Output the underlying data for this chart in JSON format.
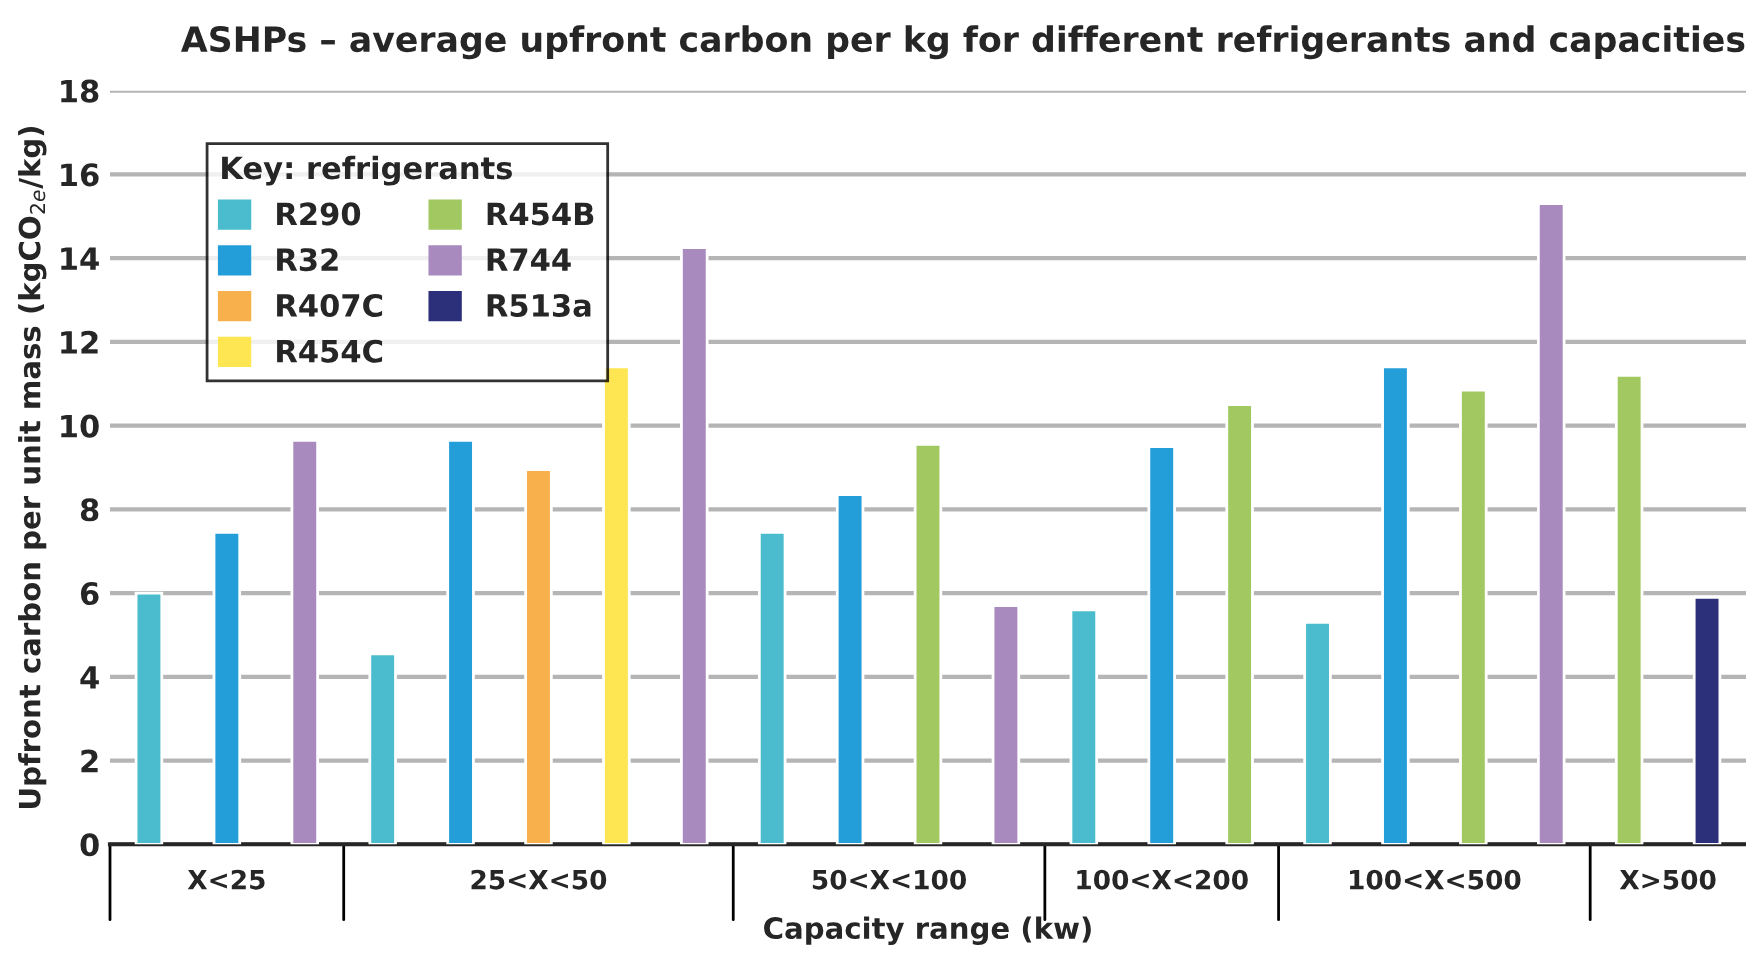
{
  "chart_data": {
    "type": "bar",
    "title": "ASHPs – average upfront carbon per kg for different refrigerants and capacities",
    "xlabel": "Capacity range (kw)",
    "ylabel": "Upfront carbon per unit mass (kgCO$_{2e}$/kg)",
    "legend_title": "Key: refrigerants",
    "categories": [
      "X<25",
      "25<X<50",
      "50<X<100",
      "100<X<200",
      "100<X<500",
      "X>500"
    ],
    "series": [
      {
        "name": "R290",
        "color": "#4bbccd",
        "values": [
          6.0,
          4.55,
          7.45,
          5.6,
          5.3,
          null
        ]
      },
      {
        "name": "R32",
        "color": "#249ed9",
        "values": [
          7.45,
          9.65,
          8.35,
          9.5,
          11.4,
          null
        ]
      },
      {
        "name": "R407C",
        "color": "#f8b04c",
        "values": [
          null,
          8.95,
          null,
          null,
          null,
          null
        ]
      },
      {
        "name": "R454C",
        "color": "#fee652",
        "values": [
          null,
          11.4,
          null,
          null,
          null,
          null
        ]
      },
      {
        "name": "R454B",
        "color": "#a2c862",
        "values": [
          null,
          null,
          9.55,
          10.5,
          10.85,
          11.2
        ]
      },
      {
        "name": "R744",
        "color": "#a88abf",
        "values": [
          9.65,
          14.25,
          5.7,
          null,
          15.3,
          null
        ]
      },
      {
        "name": "R513a",
        "color": "#2c2f7a",
        "values": [
          null,
          null,
          null,
          null,
          null,
          5.9
        ]
      }
    ],
    "ylim": [
      0,
      18
    ],
    "yticks": [
      0,
      2,
      4,
      6,
      8,
      10,
      12,
      14,
      16,
      18
    ],
    "grid": "y",
    "legend": "top left"
  }
}
